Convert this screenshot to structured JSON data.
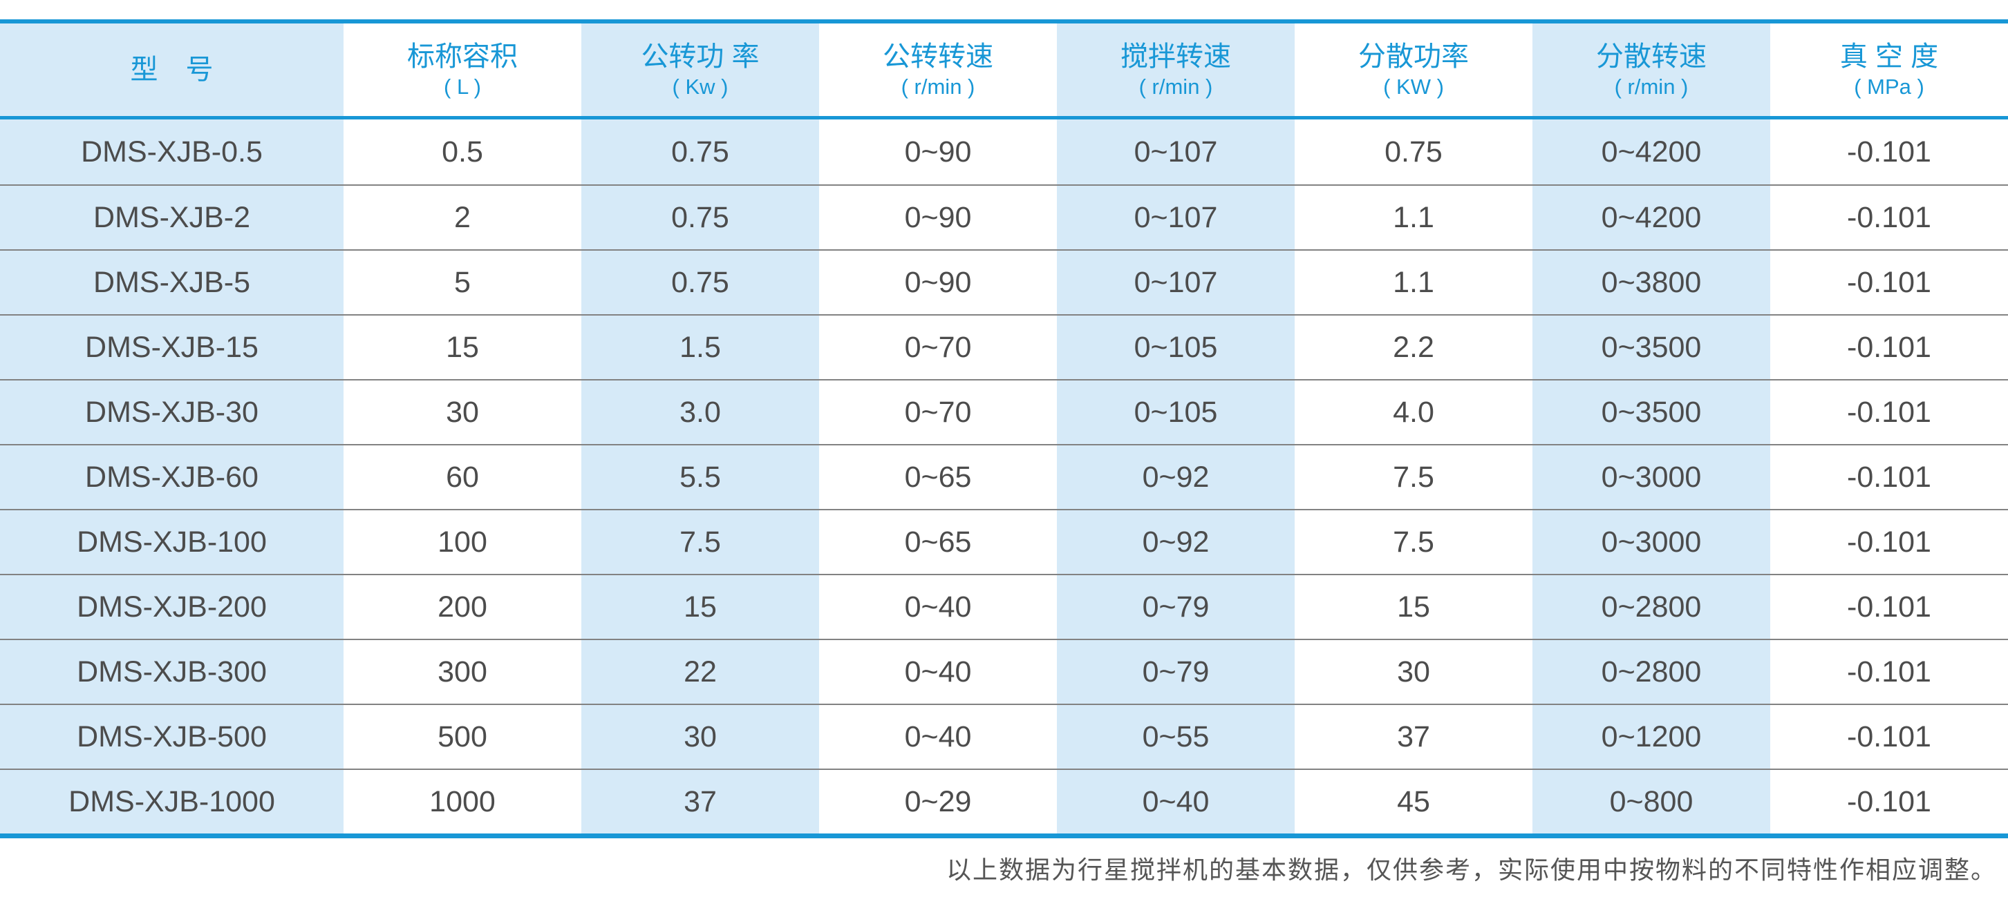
{
  "colors": {
    "accent": "#1897d6",
    "stripe": "#d6eaf8",
    "divider": "#828282",
    "text": "#4c4c4c",
    "footer_text": "#555555"
  },
  "table": {
    "columns": [
      {
        "label": "型　号",
        "unit": ""
      },
      {
        "label": "标称容积",
        "unit": "( L )"
      },
      {
        "label": "公转功 率",
        "unit": "( Kw )"
      },
      {
        "label": "公转转速",
        "unit": "( r/min )"
      },
      {
        "label": "搅拌转速",
        "unit": "( r/min )"
      },
      {
        "label": "分散功率",
        "unit": "( KW )"
      },
      {
        "label": "分散转速",
        "unit": "( r/min )"
      },
      {
        "label": "真 空 度",
        "unit": "( MPa )"
      }
    ],
    "rows": [
      {
        "model": "DMS-XJB-0.5",
        "cells": [
          "DMS-XJB-0.5",
          "0.5",
          "0.75",
          "0~90",
          "0~107",
          "0.75",
          "0~4200",
          "-0.101"
        ]
      },
      {
        "model": "DMS-XJB-2",
        "cells": [
          "DMS-XJB-2",
          "2",
          "0.75",
          "0~90",
          "0~107",
          "1.1",
          "0~4200",
          "-0.101"
        ]
      },
      {
        "model": "DMS-XJB-5",
        "cells": [
          "DMS-XJB-5",
          "5",
          "0.75",
          "0~90",
          "0~107",
          "1.1",
          "0~3800",
          "-0.101"
        ]
      },
      {
        "model": "DMS-XJB-15",
        "cells": [
          "DMS-XJB-15",
          "15",
          "1.5",
          "0~70",
          "0~105",
          "2.2",
          "0~3500",
          "-0.101"
        ]
      },
      {
        "model": "DMS-XJB-30",
        "cells": [
          "DMS-XJB-30",
          "30",
          "3.0",
          "0~70",
          "0~105",
          "4.0",
          "0~3500",
          "-0.101"
        ]
      },
      {
        "model": "DMS-XJB-60",
        "cells": [
          "DMS-XJB-60",
          "60",
          "5.5",
          "0~65",
          "0~92",
          "7.5",
          "0~3000",
          "-0.101"
        ]
      },
      {
        "model": "DMS-XJB-100",
        "cells": [
          "DMS-XJB-100",
          "100",
          "7.5",
          "0~65",
          "0~92",
          "7.5",
          "0~3000",
          "-0.101"
        ]
      },
      {
        "model": "DMS-XJB-200",
        "cells": [
          "DMS-XJB-200",
          "200",
          "15",
          "0~40",
          "0~79",
          "15",
          "0~2800",
          "-0.101"
        ]
      },
      {
        "model": "DMS-XJB-300",
        "cells": [
          "DMS-XJB-300",
          "300",
          "22",
          "0~40",
          "0~79",
          "30",
          "0~2800",
          "-0.101"
        ]
      },
      {
        "model": "DMS-XJB-500",
        "cells": [
          "DMS-XJB-500",
          "500",
          "30",
          "0~40",
          "0~55",
          "37",
          "0~1200",
          "-0.101"
        ]
      },
      {
        "model": "DMS-XJB-1000",
        "cells": [
          "DMS-XJB-1000",
          "1000",
          "37",
          "0~29",
          "0~40",
          "45",
          "0~800",
          "-0.101"
        ]
      }
    ]
  },
  "footer": {
    "note": "以上数据为行星搅拌机的基本数据，仅供参考，实际使用中按物料的不同特性作相应调整。"
  }
}
